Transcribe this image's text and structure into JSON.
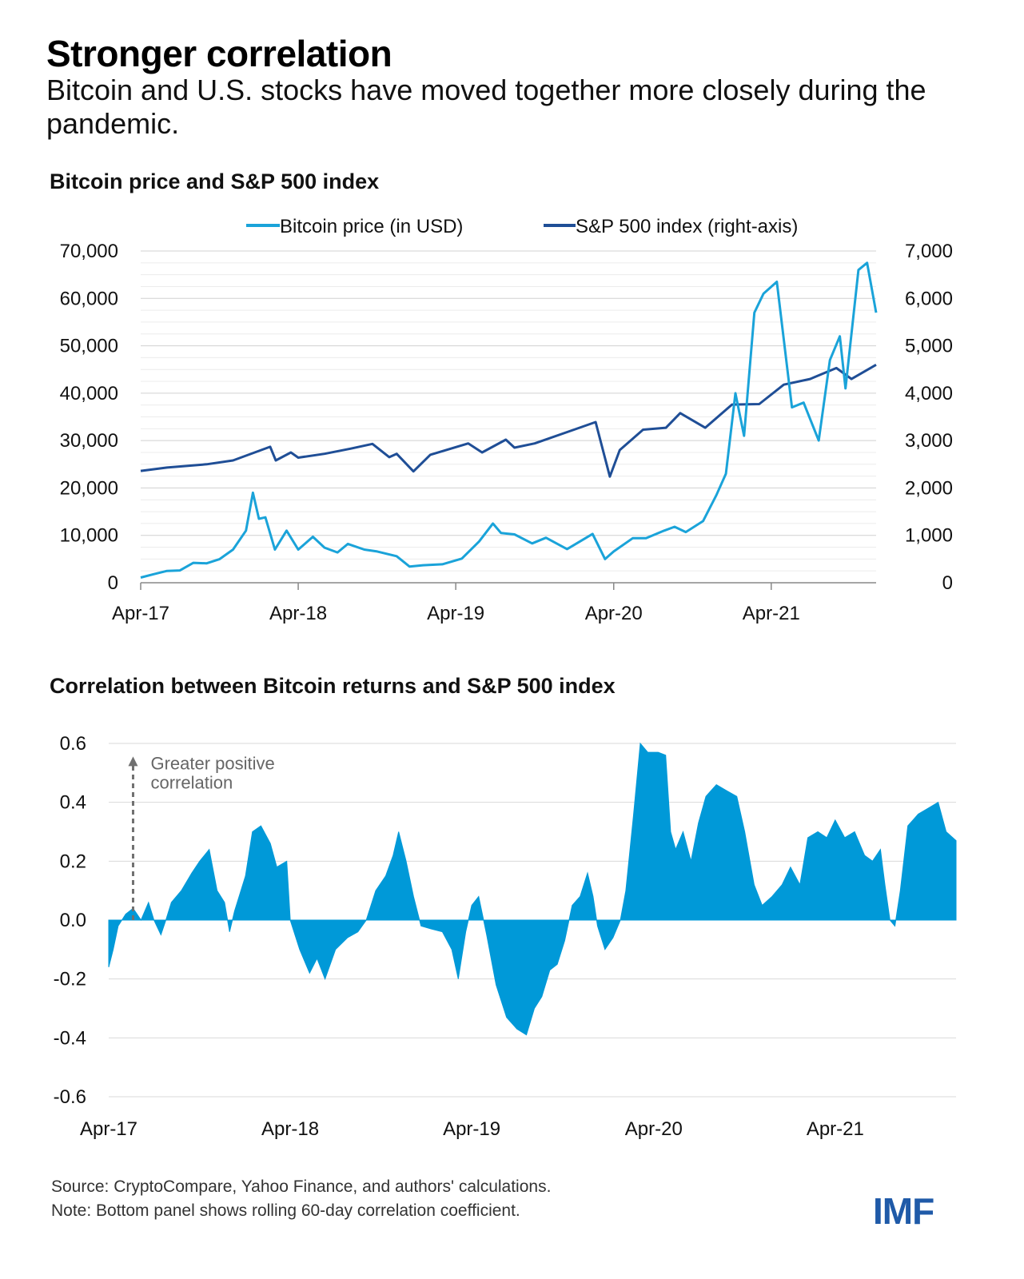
{
  "title": "Stronger correlation",
  "subtitle": "Bitcoin and U.S. stocks have moved together more closely during the pandemic.",
  "source": "Source: CryptoCompare, Yahoo Finance, and authors' calculations.",
  "note": "Note: Bottom panel shows rolling 60-day correlation coefficient.",
  "logo": "IMF",
  "colors": {
    "bitcoin": "#1aa3d9",
    "sp500": "#1f4e96",
    "correlation": "#0099d8",
    "grid": "#d9d9d9",
    "annotation": "#707070"
  },
  "chart_data": [
    {
      "type": "line",
      "title": "Bitcoin price and S&P 500 index",
      "x_tick_labels": [
        "Apr-17",
        "Apr-18",
        "Apr-19",
        "Apr-20",
        "Apr-21"
      ],
      "x_tick_dates": [
        "2017-04-01",
        "2018-04-01",
        "2019-04-01",
        "2020-04-01",
        "2021-04-01"
      ],
      "x_range": [
        "2017-04-01",
        "2021-11-30"
      ],
      "ylim_left": [
        0,
        70000
      ],
      "ylim_right": [
        0,
        7000
      ],
      "y_ticks_left": [
        "0",
        "10,000",
        "20,000",
        "30,000",
        "40,000",
        "50,000",
        "60,000",
        "70,000"
      ],
      "y_ticks_right": [
        "0",
        "1,000",
        "2,000",
        "3,000",
        "4,000",
        "5,000",
        "6,000",
        "7,000"
      ],
      "grid": true,
      "legend": "top",
      "series": [
        {
          "name": "Bitcoin price (in USD)",
          "axis": "left",
          "points": [
            [
              "2017-04-01",
              1100
            ],
            [
              "2017-05-01",
              1800
            ],
            [
              "2017-06-01",
              2500
            ],
            [
              "2017-07-01",
              2600
            ],
            [
              "2017-08-01",
              4200
            ],
            [
              "2017-09-01",
              4100
            ],
            [
              "2017-10-01",
              5000
            ],
            [
              "2017-11-01",
              7000
            ],
            [
              "2017-12-01",
              11000
            ],
            [
              "2017-12-17",
              19000
            ],
            [
              "2017-12-31",
              13500
            ],
            [
              "2018-01-15",
              13800
            ],
            [
              "2018-02-06",
              7000
            ],
            [
              "2018-03-05",
              11000
            ],
            [
              "2018-04-01",
              7000
            ],
            [
              "2018-05-05",
              9700
            ],
            [
              "2018-06-01",
              7400
            ],
            [
              "2018-07-01",
              6400
            ],
            [
              "2018-07-25",
              8200
            ],
            [
              "2018-09-01",
              7000
            ],
            [
              "2018-10-01",
              6600
            ],
            [
              "2018-11-15",
              5600
            ],
            [
              "2018-12-15",
              3400
            ],
            [
              "2019-01-15",
              3700
            ],
            [
              "2019-03-01",
              3900
            ],
            [
              "2019-04-15",
              5100
            ],
            [
              "2019-05-25",
              8700
            ],
            [
              "2019-06-26",
              12500
            ],
            [
              "2019-07-15",
              10500
            ],
            [
              "2019-08-15",
              10200
            ],
            [
              "2019-09-25",
              8300
            ],
            [
              "2019-10-27",
              9500
            ],
            [
              "2019-12-15",
              7100
            ],
            [
              "2020-02-12",
              10300
            ],
            [
              "2020-03-12",
              5000
            ],
            [
              "2020-04-01",
              6600
            ],
            [
              "2020-05-15",
              9400
            ],
            [
              "2020-06-15",
              9400
            ],
            [
              "2020-07-27",
              11000
            ],
            [
              "2020-08-20",
              11800
            ],
            [
              "2020-09-15",
              10700
            ],
            [
              "2020-10-25",
              13000
            ],
            [
              "2020-11-25",
              18500
            ],
            [
              "2020-12-17",
              23000
            ],
            [
              "2021-01-08",
              40000
            ],
            [
              "2021-01-28",
              31000
            ],
            [
              "2021-02-21",
              57000
            ],
            [
              "2021-03-14",
              61000
            ],
            [
              "2021-04-14",
              63500
            ],
            [
              "2021-05-19",
              37000
            ],
            [
              "2021-06-15",
              38000
            ],
            [
              "2021-07-20",
              30000
            ],
            [
              "2021-08-15",
              47000
            ],
            [
              "2021-09-07",
              52000
            ],
            [
              "2021-09-20",
              41000
            ],
            [
              "2021-10-20",
              66000
            ],
            [
              "2021-11-09",
              67500
            ],
            [
              "2021-11-30",
              57000
            ]
          ]
        },
        {
          "name": "S&P 500 index (right-axis)",
          "axis": "right",
          "points": [
            [
              "2017-04-01",
              2360
            ],
            [
              "2017-06-01",
              2430
            ],
            [
              "2017-09-01",
              2500
            ],
            [
              "2017-11-01",
              2580
            ],
            [
              "2018-01-26",
              2870
            ],
            [
              "2018-02-08",
              2580
            ],
            [
              "2018-03-15",
              2750
            ],
            [
              "2018-04-01",
              2640
            ],
            [
              "2018-06-01",
              2720
            ],
            [
              "2018-08-01",
              2830
            ],
            [
              "2018-09-20",
              2930
            ],
            [
              "2018-10-29",
              2650
            ],
            [
              "2018-11-15",
              2720
            ],
            [
              "2018-12-24",
              2350
            ],
            [
              "2019-02-01",
              2700
            ],
            [
              "2019-04-30",
              2940
            ],
            [
              "2019-06-01",
              2750
            ],
            [
              "2019-07-26",
              3020
            ],
            [
              "2019-08-15",
              2850
            ],
            [
              "2019-10-01",
              2940
            ],
            [
              "2019-12-31",
              3230
            ],
            [
              "2020-02-19",
              3390
            ],
            [
              "2020-03-23",
              2240
            ],
            [
              "2020-04-15",
              2800
            ],
            [
              "2020-06-08",
              3230
            ],
            [
              "2020-07-31",
              3270
            ],
            [
              "2020-09-02",
              3580
            ],
            [
              "2020-10-30",
              3270
            ],
            [
              "2020-12-31",
              3760
            ],
            [
              "2021-03-04",
              3770
            ],
            [
              "2021-04-30",
              4180
            ],
            [
              "2021-06-30",
              4300
            ],
            [
              "2021-08-30",
              4530
            ],
            [
              "2021-10-04",
              4300
            ],
            [
              "2021-11-30",
              4600
            ]
          ]
        }
      ]
    },
    {
      "type": "area",
      "title": "Correlation between Bitcoin returns and S&P 500 index",
      "x_tick_labels": [
        "Apr-17",
        "Apr-18",
        "Apr-19",
        "Apr-20",
        "Apr-21"
      ],
      "x_tick_dates": [
        "2017-04-01",
        "2018-04-01",
        "2019-04-01",
        "2020-04-01",
        "2021-04-01"
      ],
      "x_range": [
        "2017-04-01",
        "2021-11-30"
      ],
      "ylim": [
        -0.6,
        0.6
      ],
      "y_ticks": [
        "-0.6",
        "-0.4",
        "-0.2",
        "0.0",
        "0.2",
        "0.4",
        "0.6"
      ],
      "grid": true,
      "annotation": {
        "lines": [
          "Greater positive",
          "correlation"
        ],
        "arrow_from_y": 0.0,
        "arrow_to_y": 0.55,
        "at_date": "2017-05-20"
      },
      "series": [
        {
          "name": "",
          "points": [
            [
              "2017-04-01",
              -0.16
            ],
            [
              "2017-04-10",
              -0.1
            ],
            [
              "2017-04-20",
              -0.02
            ],
            [
              "2017-05-05",
              0.02
            ],
            [
              "2017-05-20",
              0.04
            ],
            [
              "2017-06-05",
              0.0
            ],
            [
              "2017-06-20",
              0.06
            ],
            [
              "2017-07-01",
              0.0
            ],
            [
              "2017-07-15",
              -0.05
            ],
            [
              "2017-07-25",
              0.0
            ],
            [
              "2017-08-05",
              0.06
            ],
            [
              "2017-08-25",
              0.1
            ],
            [
              "2017-09-15",
              0.16
            ],
            [
              "2017-10-01",
              0.2
            ],
            [
              "2017-10-20",
              0.24
            ],
            [
              "2017-11-05",
              0.1
            ],
            [
              "2017-11-20",
              0.06
            ],
            [
              "2017-11-30",
              -0.04
            ],
            [
              "2017-12-10",
              0.03
            ],
            [
              "2018-01-01",
              0.15
            ],
            [
              "2018-01-15",
              0.3
            ],
            [
              "2018-02-01",
              0.32
            ],
            [
              "2018-02-20",
              0.26
            ],
            [
              "2018-03-05",
              0.18
            ],
            [
              "2018-03-25",
              0.2
            ],
            [
              "2018-04-01",
              0.0
            ],
            [
              "2018-04-20",
              -0.1
            ],
            [
              "2018-05-10",
              -0.18
            ],
            [
              "2018-05-25",
              -0.13
            ],
            [
              "2018-06-10",
              -0.2
            ],
            [
              "2018-07-01",
              -0.1
            ],
            [
              "2018-07-25",
              -0.06
            ],
            [
              "2018-08-15",
              -0.04
            ],
            [
              "2018-09-01",
              0.0
            ],
            [
              "2018-09-20",
              0.1
            ],
            [
              "2018-10-10",
              0.15
            ],
            [
              "2018-10-25",
              0.22
            ],
            [
              "2018-11-05",
              0.3
            ],
            [
              "2018-11-20",
              0.2
            ],
            [
              "2018-12-05",
              0.08
            ],
            [
              "2018-12-20",
              -0.02
            ],
            [
              "2019-01-10",
              -0.03
            ],
            [
              "2019-02-01",
              -0.04
            ],
            [
              "2019-02-20",
              -0.1
            ],
            [
              "2019-03-05",
              -0.2
            ],
            [
              "2019-03-20",
              -0.04
            ],
            [
              "2019-04-01",
              0.05
            ],
            [
              "2019-04-15",
              0.08
            ],
            [
              "2019-05-01",
              -0.05
            ],
            [
              "2019-05-20",
              -0.22
            ],
            [
              "2019-06-10",
              -0.33
            ],
            [
              "2019-07-01",
              -0.37
            ],
            [
              "2019-07-20",
              -0.39
            ],
            [
              "2019-08-05",
              -0.3
            ],
            [
              "2019-08-20",
              -0.26
            ],
            [
              "2019-09-05",
              -0.17
            ],
            [
              "2019-09-20",
              -0.15
            ],
            [
              "2019-10-05",
              -0.07
            ],
            [
              "2019-10-20",
              0.05
            ],
            [
              "2019-11-05",
              0.08
            ],
            [
              "2019-11-20",
              0.16
            ],
            [
              "2019-12-01",
              0.08
            ],
            [
              "2019-12-10",
              -0.02
            ],
            [
              "2019-12-25",
              -0.1
            ],
            [
              "2020-01-10",
              -0.06
            ],
            [
              "2020-01-25",
              0.0
            ],
            [
              "2020-02-05",
              0.1
            ],
            [
              "2020-02-20",
              0.35
            ],
            [
              "2020-03-05",
              0.6
            ],
            [
              "2020-03-20",
              0.57
            ],
            [
              "2020-04-10",
              0.57
            ],
            [
              "2020-04-25",
              0.56
            ],
            [
              "2020-05-05",
              0.3
            ],
            [
              "2020-05-15",
              0.24
            ],
            [
              "2020-05-30",
              0.3
            ],
            [
              "2020-06-15",
              0.2
            ],
            [
              "2020-06-30",
              0.33
            ],
            [
              "2020-07-15",
              0.42
            ],
            [
              "2020-08-05",
              0.46
            ],
            [
              "2020-08-25",
              0.44
            ],
            [
              "2020-09-15",
              0.42
            ],
            [
              "2020-10-01",
              0.3
            ],
            [
              "2020-10-20",
              0.12
            ],
            [
              "2020-11-05",
              0.05
            ],
            [
              "2020-11-25",
              0.08
            ],
            [
              "2020-12-15",
              0.12
            ],
            [
              "2021-01-01",
              0.18
            ],
            [
              "2021-01-20",
              0.12
            ],
            [
              "2021-02-05",
              0.28
            ],
            [
              "2021-02-25",
              0.3
            ],
            [
              "2021-03-15",
              0.28
            ],
            [
              "2021-04-01",
              0.34
            ],
            [
              "2021-04-20",
              0.28
            ],
            [
              "2021-05-10",
              0.3
            ],
            [
              "2021-05-30",
              0.22
            ],
            [
              "2021-06-15",
              0.2
            ],
            [
              "2021-07-01",
              0.24
            ],
            [
              "2021-07-10",
              0.12
            ],
            [
              "2021-07-20",
              0.0
            ],
            [
              "2021-07-30",
              -0.02
            ],
            [
              "2021-08-10",
              0.1
            ],
            [
              "2021-08-25",
              0.32
            ],
            [
              "2021-09-15",
              0.36
            ],
            [
              "2021-10-05",
              0.38
            ],
            [
              "2021-10-25",
              0.4
            ],
            [
              "2021-11-10",
              0.3
            ],
            [
              "2021-11-30",
              0.27
            ]
          ]
        }
      ]
    }
  ]
}
